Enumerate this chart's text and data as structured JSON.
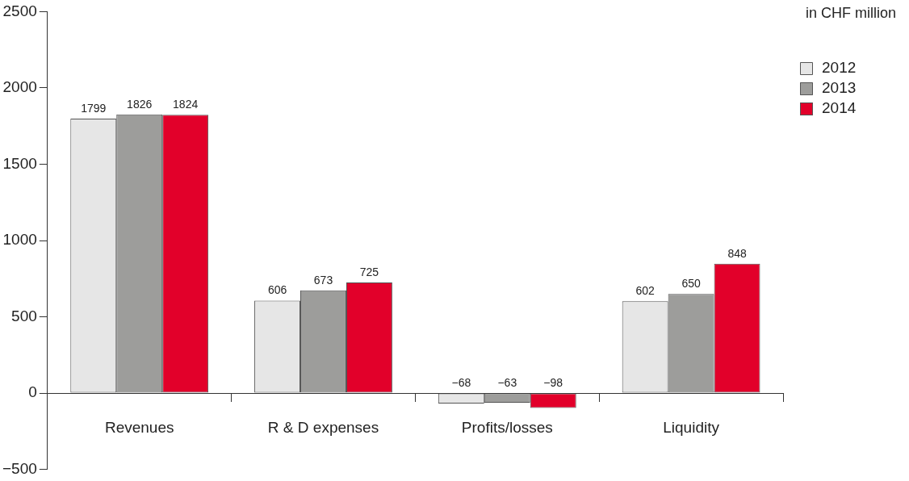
{
  "chart_data": {
    "type": "bar",
    "ylabel": "in CHF million",
    "categories": [
      "Revenues",
      "R & D expenses",
      "Profits/losses",
      "Liquidity"
    ],
    "series": [
      {
        "name": "2012",
        "color": "#e6e6e6",
        "values": [
          1799,
          606,
          -68,
          602
        ]
      },
      {
        "name": "2013",
        "color": "#9d9d9b",
        "values": [
          1826,
          673,
          -63,
          650
        ]
      },
      {
        "name": "2014",
        "color": "#e2002a",
        "values": [
          1824,
          725,
          -98,
          848
        ]
      }
    ],
    "ylim": [
      -500,
      2500
    ],
    "yticks": [
      -500,
      0,
      500,
      1000,
      1500,
      2000,
      2500
    ],
    "data_labels": true,
    "grid": false,
    "legend": "top right"
  }
}
